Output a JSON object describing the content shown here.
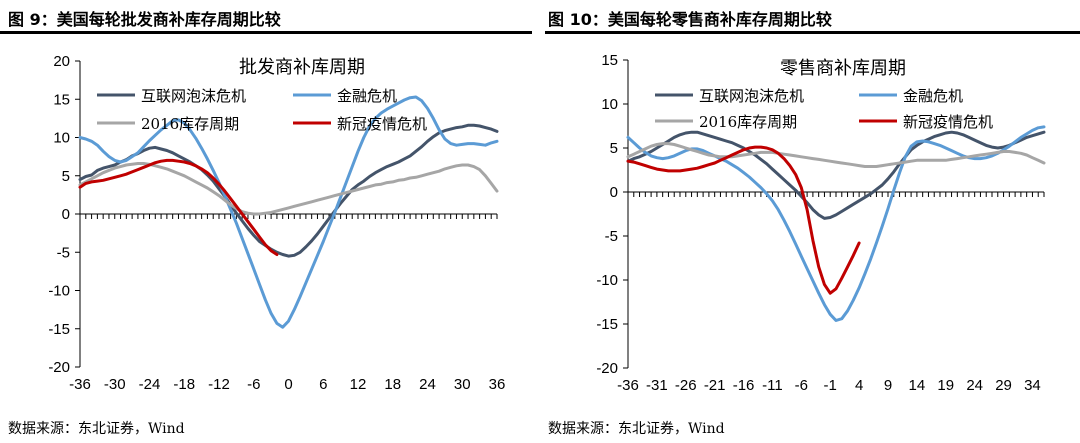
{
  "left_title": "图 9：美国每轮批发商补库存周期比较",
  "right_title": "图 10：美国每轮零售商补库存周期比较",
  "left_source": "数据来源：东北证券，Wind",
  "right_source": "数据来源：东北证券，Wind",
  "chart_data": [
    {
      "type": "line",
      "title": "批发商补库周期",
      "x_range": [
        -36,
        36
      ],
      "xticks": [
        -36,
        -30,
        -24,
        -18,
        -12,
        -6,
        0,
        6,
        12,
        18,
        24,
        30,
        36
      ],
      "ylim": [
        -20,
        20
      ],
      "yticks": [
        20,
        15,
        10,
        5,
        0,
        -5,
        -10,
        -15,
        -20
      ],
      "legend": "top",
      "series": [
        {
          "name": "互联网泡沫危机",
          "color": "#44546a",
          "x_start": -36,
          "x_end": 36,
          "values": [
            4.5,
            4.9,
            5.1,
            5.7,
            6.0,
            6.2,
            6.4,
            6.8,
            7.1,
            7.6,
            7.9,
            8.3,
            8.6,
            8.7,
            8.5,
            8.3,
            8.0,
            7.6,
            7.2,
            6.8,
            6.3,
            5.8,
            5.1,
            4.3,
            3.3,
            2.3,
            1.2,
            0.1,
            -0.9,
            -1.9,
            -2.8,
            -3.6,
            -4.1,
            -4.6,
            -5.0,
            -5.3,
            -5.5,
            -5.4,
            -5.0,
            -4.3,
            -3.5,
            -2.6,
            -1.6,
            -0.6,
            0.4,
            1.4,
            2.3,
            3.2,
            3.8,
            4.3,
            4.9,
            5.4,
            5.8,
            6.2,
            6.5,
            6.8,
            7.2,
            7.6,
            8.2,
            8.8,
            9.5,
            10.1,
            10.6,
            10.9,
            11.1,
            11.3,
            11.4,
            11.6,
            11.6,
            11.5,
            11.3,
            11.1,
            10.8
          ]
        },
        {
          "name": "金融危机",
          "color": "#5b9bd5",
          "x_start": -36,
          "x_end": 36,
          "values": [
            10.0,
            9.8,
            9.5,
            9.0,
            8.2,
            7.5,
            7.0,
            6.8,
            7.0,
            7.5,
            8.0,
            8.8,
            9.6,
            10.3,
            11.0,
            11.6,
            12.2,
            12.3,
            11.9,
            11.0,
            9.9,
            8.6,
            7.2,
            5.7,
            4.1,
            2.4,
            0.6,
            -1.2,
            -3.2,
            -5.2,
            -7.2,
            -9.2,
            -11.2,
            -13.0,
            -14.3,
            -14.8,
            -14.0,
            -12.5,
            -10.8,
            -9.0,
            -7.2,
            -5.4,
            -3.6,
            -1.7,
            0.2,
            2.2,
            4.2,
            6.2,
            8.2,
            10.0,
            11.5,
            12.5,
            13.2,
            13.7,
            14.1,
            14.5,
            14.9,
            15.2,
            15.3,
            14.8,
            13.8,
            12.5,
            11.0,
            9.8,
            9.2,
            9.0,
            9.1,
            9.2,
            9.2,
            9.1,
            9.0,
            9.3,
            9.5
          ]
        },
        {
          "name": "2016库存周期",
          "color": "#a6a6a6",
          "x_start": -36,
          "x_end": 36,
          "values": [
            3.8,
            4.2,
            4.6,
            5.0,
            5.4,
            5.7,
            6.0,
            6.2,
            6.4,
            6.5,
            6.6,
            6.6,
            6.5,
            6.3,
            6.1,
            5.9,
            5.6,
            5.3,
            5.0,
            4.6,
            4.2,
            3.8,
            3.4,
            2.9,
            2.4,
            1.8,
            1.2,
            0.7,
            0.3,
            0.1,
            0.0,
            0.0,
            0.1,
            0.2,
            0.4,
            0.6,
            0.8,
            1.0,
            1.2,
            1.4,
            1.6,
            1.8,
            2.0,
            2.2,
            2.4,
            2.6,
            2.8,
            3.0,
            3.2,
            3.4,
            3.6,
            3.8,
            3.9,
            4.1,
            4.2,
            4.4,
            4.5,
            4.7,
            4.8,
            5.0,
            5.2,
            5.4,
            5.6,
            5.9,
            6.1,
            6.3,
            6.4,
            6.4,
            6.2,
            5.8,
            5.0,
            4.0,
            3.0
          ]
        },
        {
          "name": "新冠疫情危机",
          "color": "#c00000",
          "x_start": -36,
          "x_end": -2,
          "values": [
            3.5,
            4.0,
            4.2,
            4.3,
            4.4,
            4.6,
            4.8,
            5.0,
            5.2,
            5.5,
            5.8,
            6.1,
            6.4,
            6.7,
            6.9,
            7.0,
            7.0,
            6.9,
            6.8,
            6.6,
            6.3,
            5.9,
            5.4,
            4.7,
            3.9,
            3.0,
            2.0,
            1.0,
            0.0,
            -1.0,
            -2.0,
            -3.0,
            -4.0,
            -4.8,
            -5.3
          ]
        }
      ]
    },
    {
      "type": "line",
      "title": "零售商补库周期",
      "x_range": [
        -36,
        36
      ],
      "xticks": [
        -36,
        -31,
        -26,
        -21,
        -16,
        -11,
        -6,
        -1,
        4,
        9,
        14,
        19,
        24,
        29,
        34
      ],
      "ylim": [
        -20,
        15
      ],
      "yticks": [
        15,
        10,
        5,
        0,
        -5,
        -10,
        -15,
        -20
      ],
      "legend": "top",
      "series": [
        {
          "name": "互联网泡沫危机",
          "color": "#44546a",
          "x_start": -36,
          "x_end": 36,
          "values": [
            3.5,
            3.8,
            4.0,
            4.3,
            4.6,
            5.0,
            5.4,
            5.8,
            6.2,
            6.5,
            6.7,
            6.8,
            6.8,
            6.6,
            6.4,
            6.2,
            6.0,
            5.8,
            5.6,
            5.3,
            5.0,
            4.6,
            4.2,
            3.7,
            3.2,
            2.6,
            2.0,
            1.4,
            0.8,
            0.2,
            -0.5,
            -1.2,
            -2.0,
            -2.6,
            -3.0,
            -2.9,
            -2.6,
            -2.2,
            -1.8,
            -1.4,
            -1.0,
            -0.6,
            -0.2,
            0.3,
            0.8,
            1.5,
            2.3,
            3.2,
            4.0,
            4.8,
            5.3,
            5.7,
            6.0,
            6.3,
            6.5,
            6.7,
            6.8,
            6.7,
            6.5,
            6.2,
            5.9,
            5.6,
            5.3,
            5.1,
            5.0,
            5.1,
            5.3,
            5.6,
            5.9,
            6.2,
            6.4,
            6.6,
            6.8
          ]
        },
        {
          "name": "金融危机",
          "color": "#5b9bd5",
          "x_start": -36,
          "x_end": 36,
          "values": [
            6.2,
            5.6,
            5.0,
            4.5,
            4.1,
            3.9,
            3.8,
            3.9,
            4.1,
            4.4,
            4.7,
            4.9,
            4.9,
            4.7,
            4.4,
            4.1,
            3.8,
            3.5,
            3.1,
            2.7,
            2.2,
            1.7,
            1.1,
            0.5,
            -0.2,
            -1.0,
            -2.0,
            -3.2,
            -4.5,
            -5.9,
            -7.3,
            -8.7,
            -10.1,
            -11.5,
            -12.8,
            -13.9,
            -14.6,
            -14.4,
            -13.5,
            -12.3,
            -10.9,
            -9.3,
            -7.6,
            -5.8,
            -3.9,
            -1.9,
            0.2,
            2.2,
            4.0,
            5.2,
            5.7,
            5.8,
            5.7,
            5.5,
            5.3,
            5.0,
            4.7,
            4.4,
            4.1,
            3.9,
            3.8,
            3.8,
            3.9,
            4.1,
            4.4,
            4.8,
            5.2,
            5.7,
            6.2,
            6.6,
            7.0,
            7.3,
            7.4
          ]
        },
        {
          "name": "2016库存周期",
          "color": "#a6a6a6",
          "x_start": -36,
          "x_end": 36,
          "values": [
            4.0,
            4.3,
            4.6,
            4.9,
            5.2,
            5.4,
            5.5,
            5.5,
            5.4,
            5.2,
            5.0,
            4.8,
            4.6,
            4.4,
            4.2,
            4.1,
            4.0,
            4.0,
            4.0,
            4.1,
            4.2,
            4.3,
            4.4,
            4.5,
            4.5,
            4.5,
            4.4,
            4.3,
            4.2,
            4.1,
            4.0,
            3.9,
            3.8,
            3.7,
            3.6,
            3.5,
            3.4,
            3.3,
            3.2,
            3.1,
            3.0,
            2.9,
            2.9,
            2.9,
            3.0,
            3.1,
            3.2,
            3.3,
            3.4,
            3.5,
            3.6,
            3.6,
            3.6,
            3.6,
            3.6,
            3.6,
            3.7,
            3.8,
            3.9,
            4.0,
            4.1,
            4.2,
            4.3,
            4.4,
            4.5,
            4.6,
            4.6,
            4.5,
            4.4,
            4.2,
            3.9,
            3.6,
            3.3
          ]
        },
        {
          "name": "新冠疫情危机",
          "color": "#c00000",
          "x_start": -36,
          "x_end": 4,
          "values": [
            3.5,
            3.4,
            3.2,
            3.0,
            2.8,
            2.6,
            2.5,
            2.4,
            2.4,
            2.4,
            2.5,
            2.6,
            2.7,
            2.9,
            3.1,
            3.3,
            3.6,
            3.9,
            4.2,
            4.5,
            4.8,
            5.0,
            5.1,
            5.1,
            5.0,
            4.8,
            4.4,
            3.8,
            3.0,
            2.0,
            0.5,
            -2.0,
            -5.5,
            -8.5,
            -10.5,
            -11.5,
            -11.0,
            -9.8,
            -8.5,
            -7.2,
            -5.8
          ]
        }
      ]
    }
  ]
}
